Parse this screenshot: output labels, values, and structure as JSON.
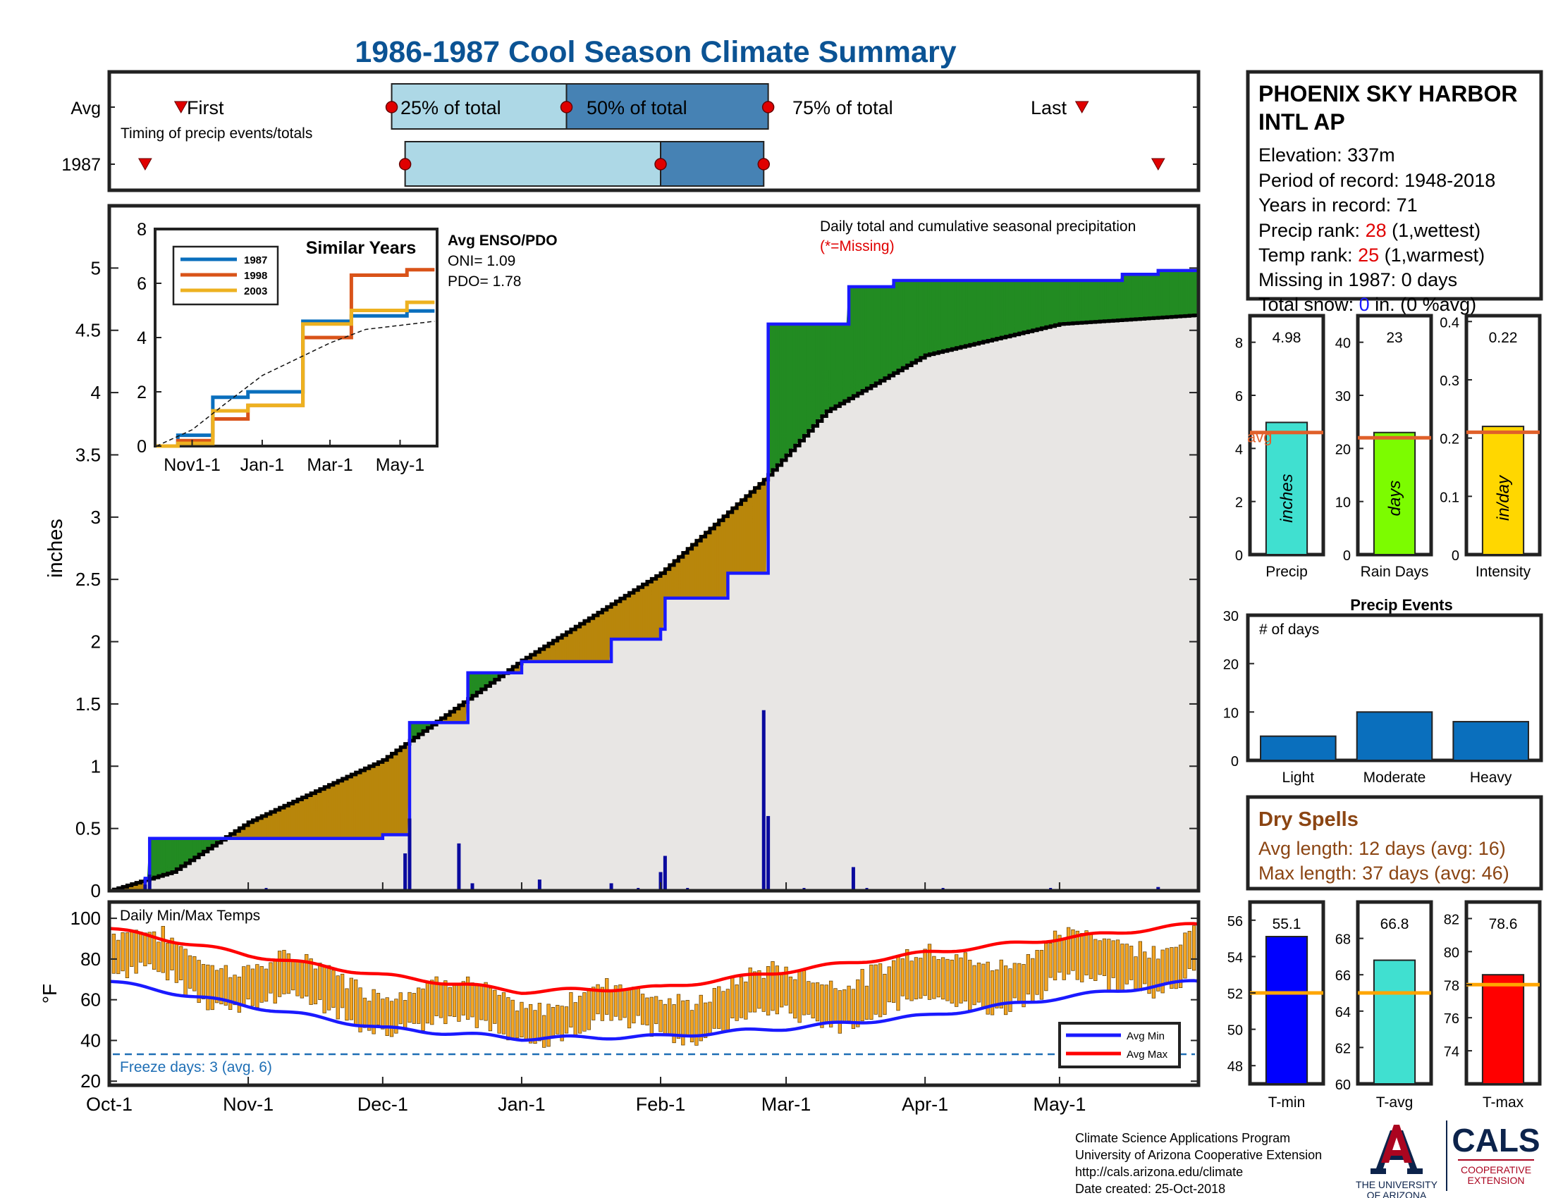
{
  "title": "1986-1987 Cool Season Climate Summary",
  "colors": {
    "title": "#0b5394",
    "frame": "#222222",
    "light_blue": "#add8e6",
    "mid_blue": "#4682b4",
    "marker_red": "#e00000",
    "green": "#228b22",
    "brown": "#b8860b",
    "gray": "#e8e6e4",
    "blue_line": "#1a1aff",
    "bar_blue": "#0a0a9e",
    "orange_bar": "#f5a623",
    "avg_orange": "#e0602a",
    "precip_cyan": "#40e0d0",
    "raindays_green": "#7cfc00",
    "intensity_yellow": "#ffd700",
    "events_blue": "#0a6fbd",
    "dry_brown": "#8b4513",
    "ua_red": "#ab0520",
    "ua_navy": "#0c234b",
    "red": "#ff0000",
    "rank_red": "#e00000"
  },
  "timing": {
    "rows": [
      "Avg",
      "1987"
    ],
    "note": "Timing of precip events/totals",
    "labels": {
      "first": "First",
      "q25": "25% of total",
      "q50": "50% of total",
      "q75": "75% of total",
      "last": "Last"
    },
    "avg": {
      "first": "Oct-17",
      "q25": "Dec-03",
      "q50": "Jan-11",
      "q75": "Feb-25",
      "last": "May-06"
    },
    "y1987": {
      "first": "Oct-09",
      "q25": "Dec-06",
      "q50": "Feb-01",
      "q75": "Feb-24",
      "last": "May-23"
    }
  },
  "station": {
    "name_line1": "PHOENIX SKY HARBOR",
    "name_line2": "INTL AP",
    "elevation": "Elevation: 337m",
    "period": "Period of record: 1948-2018",
    "years": "Years in record: 71",
    "precip_rank_label": "Precip rank: ",
    "precip_rank_value": "28",
    "precip_rank_note": " (1,wettest)",
    "temp_rank_label": "Temp rank: ",
    "temp_rank_value": "25",
    "temp_rank_note": " (1,warmest)",
    "missing": "Missing in 1987: 0 days",
    "snow_label": "Total snow: ",
    "snow_value": "0",
    "snow_note": " in. (0 %avg)"
  },
  "main_chart": {
    "ylabel": "inches",
    "note": "Daily total and cumulative seasonal precipitation",
    "missing_note": "(*=Missing)",
    "enso_title": "Avg ENSO/PDO",
    "oni": "ONI= 1.09",
    "pdo": "PDO= 1.78",
    "month_labels": [
      "Oct-1",
      "Nov-1",
      "Dec-1",
      "Jan-1",
      "Feb-1",
      "Mar-1",
      "Apr-1",
      "May-1"
    ],
    "y_ticks": [
      "0",
      "0.5",
      "1",
      "1.5",
      "2",
      "2.5",
      "3",
      "3.5",
      "4",
      "4.5",
      "5"
    ]
  },
  "inset": {
    "title": "Similar Years",
    "legend": [
      "1987",
      "1998",
      "2003"
    ],
    "x_labels": [
      "Nov1-1",
      "Jan-1",
      "Mar-1",
      "May-1"
    ],
    "y_ticks": [
      "0",
      "2",
      "4",
      "6",
      "8"
    ]
  },
  "temps": {
    "title": "Daily Min/Max Temps",
    "ylabel": "°F",
    "freeze": "Freeze days: 3 (avg. 6)",
    "legend_min": "Avg Min",
    "legend_max": "Avg Max",
    "y_ticks": [
      "20",
      "40",
      "60",
      "80",
      "100"
    ]
  },
  "summary_bars": [
    {
      "label": "Precip",
      "value_text": "4.98",
      "unit": "inches",
      "ticks": [
        "0",
        "2",
        "4",
        "6",
        "8"
      ],
      "ymax": 9,
      "value": 4.98,
      "avg": 4.6,
      "avg_label": "avg"
    },
    {
      "label": "Rain Days",
      "value_text": "23",
      "unit": "days",
      "ticks": [
        "0",
        "10",
        "20",
        "30",
        "40"
      ],
      "ymax": 45,
      "value": 23,
      "avg": 22
    },
    {
      "label": "Intensity",
      "value_text": "0.22",
      "unit": "in/day",
      "ticks": [
        "0",
        "0.1",
        "0.2",
        "0.3",
        "0.4"
      ],
      "ymax": 0.41,
      "value": 0.22,
      "avg": 0.21
    }
  ],
  "events": {
    "title": "Precip Events",
    "note": "# of days",
    "categories": [
      "Light",
      "Moderate",
      "Heavy"
    ],
    "values": [
      5,
      10,
      8
    ],
    "ticks": [
      "0",
      "10",
      "20",
      "30"
    ]
  },
  "dry_spells": {
    "title": "Dry Spells",
    "avg": "Avg length: 12 days (avg: 16)",
    "max": "Max length: 37 days (avg: 46)"
  },
  "temp_bars": [
    {
      "label": "T-min",
      "value_text": "55.1",
      "value": 55.1,
      "avg": 52,
      "ymin": 47,
      "ymax": 57,
      "ticks": [
        "48",
        "50",
        "52",
        "54",
        "56"
      ]
    },
    {
      "label": "T-avg",
      "value_text": "66.8",
      "value": 66.8,
      "avg": 65,
      "ymin": 60,
      "ymax": 70,
      "ticks": [
        "60",
        "62",
        "64",
        "66",
        "68"
      ]
    },
    {
      "label": "T-max",
      "value_text": "78.6",
      "value": 78.6,
      "avg": 78,
      "ymin": 72,
      "ymax": 83,
      "ticks": [
        "74",
        "76",
        "78",
        "80",
        "82"
      ]
    }
  ],
  "footer": [
    "Climate Science Applications Program",
    "University of Arizona Cooperative Extension",
    "http://cals.arizona.edu/climate",
    " Date created: 25-Oct-2018"
  ],
  "logo": {
    "ua_line1": "THE UNIVERSITY",
    "ua_line2": "OF ARIZONA",
    "cals": "CALS",
    "coop1": "COOPERATIVE",
    "coop2": "EXTENSION"
  },
  "chart_data": [
    {
      "type": "line",
      "title": "Daily total and cumulative seasonal precipitation",
      "ylabel": "inches",
      "ylim": [
        0,
        5.5
      ],
      "series": [
        {
          "name": "1987",
          "x": [
            "Oct-1",
            "Oct-9",
            "Oct-10",
            "Nov-1",
            "Dec-1",
            "Dec-6",
            "Dec-7",
            "Dec-12",
            "Dec-20",
            "Dec-21",
            "Jan-1",
            "Jan-5",
            "Jan-21",
            "Feb-1",
            "Feb-2",
            "Feb-16",
            "Feb-24",
            "Feb-25",
            "Mar-15",
            "Mar-25",
            "Apr-15",
            "May-1",
            "May-15",
            "May-23",
            "May-31"
          ],
          "values": [
            0,
            0.1,
            0.42,
            0.42,
            0.45,
            0.45,
            1.35,
            1.35,
            1.75,
            1.75,
            1.84,
            1.84,
            2.02,
            2.1,
            2.35,
            2.55,
            2.55,
            4.55,
            4.85,
            4.9,
            4.9,
            4.9,
            4.95,
            4.98,
            4.98
          ]
        },
        {
          "x": [
            "Oct-1",
            "Oct-15",
            "Nov-1",
            "Dec-1",
            "Jan-1",
            "Feb-1",
            "Feb-24",
            "Mar-10",
            "Apr-1",
            "May-1",
            "May-31"
          ],
          "values": [
            0,
            0.15,
            0.55,
            1.05,
            1.85,
            2.55,
            3.3,
            3.85,
            4.3,
            4.55,
            4.62
          ]
        }
      ],
      "daily_precip": [
        {
          "date": "Oct-9",
          "value": 0.05
        },
        {
          "date": "Oct-10",
          "value": 0.13
        },
        {
          "date": "Dec-6",
          "value": 0.3
        },
        {
          "date": "Dec-7",
          "value": 0.58
        },
        {
          "date": "Dec-18",
          "value": 0.38
        },
        {
          "date": "Dec-21",
          "value": 0.06
        },
        {
          "date": "Jan-5",
          "value": 0.09
        },
        {
          "date": "Jan-21",
          "value": 0.06
        },
        {
          "date": "Feb-1",
          "value": 0.15
        },
        {
          "date": "Feb-2",
          "value": 0.28
        },
        {
          "date": "Feb-24",
          "value": 1.45
        },
        {
          "date": "Feb-25",
          "value": 0.6
        },
        {
          "date": "Mar-16",
          "value": 0.19
        },
        {
          "date": "May-23",
          "value": 0.03
        }
      ]
    },
    {
      "type": "line",
      "title": "Similar Years",
      "ylim": [
        0,
        8
      ],
      "series": [
        {
          "name": "1987",
          "values": [
            0,
            0.4,
            1.8,
            2.0,
            4.6,
            4.8,
            4.98
          ]
        },
        {
          "name": "1998",
          "values": [
            0,
            0.2,
            1.0,
            1.5,
            4.0,
            6.3,
            6.5
          ]
        },
        {
          "name": "2003",
          "values": [
            0,
            0.1,
            1.3,
            1.5,
            4.5,
            5.0,
            5.3
          ]
        },
        {
          "values": [
            0,
            0.6,
            1.6,
            2.6,
            3.8,
            4.3,
            4.6
          ]
        }
      ],
      "x": [
        "Oct-1",
        "Nov-1",
        "Dec-1",
        "Jan-1",
        "Mar-1",
        "Apr-1",
        "May-31"
      ]
    },
    {
      "type": "line",
      "title": "Daily Min/Max Temps",
      "ylim": [
        20,
        105
      ],
      "series": [
        {
          "name": "Avg Min",
          "x": [
            "Oct-1",
            "Nov-1",
            "Dec-1",
            "Jan-1",
            "Feb-1",
            "Mar-1",
            "Apr-1",
            "May-1",
            "May-31"
          ],
          "values": [
            69,
            57,
            46,
            41,
            42,
            46,
            52,
            61,
            69
          ]
        },
        {
          "name": "Avg Max",
          "x": [
            "Oct-1",
            "Nov-1",
            "Dec-1",
            "Jan-1",
            "Feb-1",
            "Mar-1",
            "Apr-1",
            "May-1",
            "May-31"
          ],
          "values": [
            95,
            82,
            72,
            64,
            66,
            74,
            83,
            90,
            97
          ]
        }
      ]
    },
    {
      "type": "bar",
      "title": "Precip Events",
      "categories": [
        "Light",
        "Moderate",
        "Heavy"
      ],
      "values": [
        5,
        10,
        8
      ],
      "ylim": [
        0,
        30
      ]
    }
  ]
}
